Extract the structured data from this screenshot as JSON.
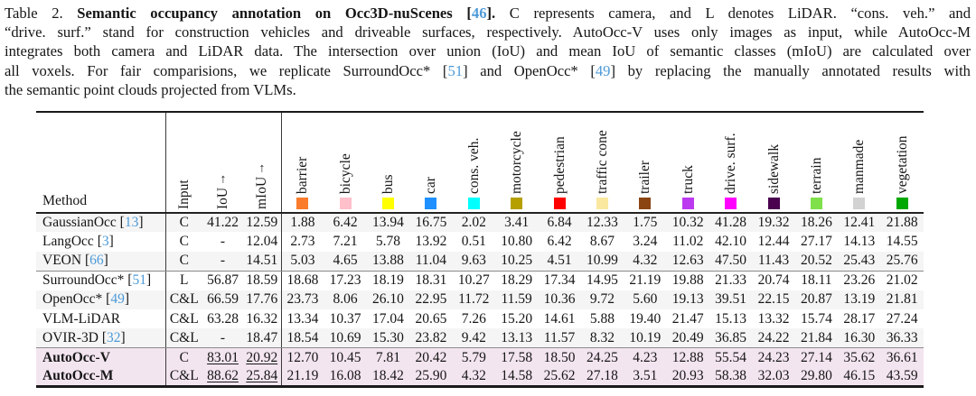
{
  "caption": {
    "lines": [
      {
        "segments": [
          {
            "t": "Table 2. ",
            "s": "n"
          },
          {
            "t": "Semantic occupancy annotation on Occ3D-nuScenes [",
            "s": "b"
          },
          {
            "t": "46",
            "s": "bc"
          },
          {
            "t": "].",
            "s": "b"
          },
          {
            "t": " C represents camera, and L denotes LiDAR. “cons. veh.” and",
            "s": "n"
          }
        ]
      },
      {
        "segments": [
          {
            "t": "“drive. surf.” stand for construction vehicles and driveable surfaces, respectively. AutoOcc-V uses only images as input, while AutoOcc-M",
            "s": "n"
          }
        ]
      },
      {
        "segments": [
          {
            "t": "integrates both camera and LiDAR data. The intersection over union (IoU) and mean IoU of semantic classes (mIoU) are calculated over",
            "s": "n"
          }
        ]
      },
      {
        "segments": [
          {
            "t": "all voxels. For fair comparisions, we replicate SurroundOcc* [",
            "s": "n"
          },
          {
            "t": "51",
            "s": "c"
          },
          {
            "t": "] and OpenOcc* [",
            "s": "n"
          },
          {
            "t": "49",
            "s": "c"
          },
          {
            "t": "] by replacing the manually annotated results with",
            "s": "n"
          }
        ]
      },
      {
        "segments": [
          {
            "t": "the semantic point clouds projected from VLMs.",
            "s": "n"
          }
        ]
      }
    ]
  },
  "table": {
    "method_header": "Method",
    "meta": [
      {
        "label": "Input",
        "arrow": ""
      },
      {
        "label": "IoU",
        "arrow": "↑"
      },
      {
        "label": "mIoU",
        "arrow": "↑"
      }
    ],
    "classes": [
      {
        "label": "barrier",
        "color": "#f97b2b"
      },
      {
        "label": "bicycle",
        "color": "#ffc0cb"
      },
      {
        "label": "bus",
        "color": "#ffff00"
      },
      {
        "label": "car",
        "color": "#1e90ff"
      },
      {
        "label": "cons. veh.",
        "color": "#00ffff"
      },
      {
        "label": "motorcycle",
        "color": "#b5a000"
      },
      {
        "label": "pedestrian",
        "color": "#ff0000"
      },
      {
        "label": "traffic cone",
        "color": "#fbe8a0"
      },
      {
        "label": "trailer",
        "color": "#8b4513"
      },
      {
        "label": "truck",
        "color": "#bb3af0"
      },
      {
        "label": "drive. surf.",
        "color": "#ff00ff"
      },
      {
        "label": "sidewalk",
        "color": "#4a004f"
      },
      {
        "label": "terrain",
        "color": "#7fe04a"
      },
      {
        "label": "manmade",
        "color": "#d2d2d2"
      },
      {
        "label": "vegetation",
        "color": "#00a800"
      }
    ],
    "rows": [
      {
        "method": "GaussianOcc",
        "cite": "13",
        "bold": false,
        "highlight": false,
        "rule_after": false,
        "input": "C",
        "iou": "41.22",
        "miou": "12.59",
        "underline": false,
        "values": [
          "1.88",
          "6.42",
          "13.94",
          "16.75",
          "2.02",
          "3.41",
          "6.84",
          "12.33",
          "1.75",
          "10.32",
          "41.28",
          "19.32",
          "18.26",
          "12.41",
          "21.88"
        ]
      },
      {
        "method": "LangOcc",
        "cite": "3",
        "bold": false,
        "highlight": false,
        "rule_after": false,
        "input": "C",
        "iou": "-",
        "miou": "12.04",
        "underline": false,
        "values": [
          "2.73",
          "7.21",
          "5.78",
          "13.92",
          "0.51",
          "10.80",
          "6.42",
          "8.67",
          "3.24",
          "11.02",
          "42.10",
          "12.44",
          "27.17",
          "14.13",
          "14.55"
        ]
      },
      {
        "method": "VEON",
        "cite": "66",
        "bold": false,
        "highlight": false,
        "rule_after": true,
        "input": "C",
        "iou": "-",
        "miou": "14.51",
        "underline": false,
        "values": [
          "5.03",
          "4.65",
          "13.88",
          "11.04",
          "9.63",
          "10.25",
          "4.51",
          "10.99",
          "4.32",
          "12.63",
          "47.50",
          "11.43",
          "20.52",
          "25.43",
          "25.76"
        ]
      },
      {
        "method": "SurroundOcc*",
        "cite": "51",
        "bold": false,
        "highlight": false,
        "rule_after": false,
        "input": "L",
        "iou": "56.87",
        "miou": "18.59",
        "underline": false,
        "values": [
          "18.68",
          "17.23",
          "18.19",
          "18.31",
          "10.27",
          "18.29",
          "17.34",
          "14.95",
          "21.19",
          "19.88",
          "21.33",
          "20.74",
          "18.11",
          "23.26",
          "21.02"
        ]
      },
      {
        "method": "OpenOcc*",
        "cite": "49",
        "bold": false,
        "highlight": false,
        "rule_after": false,
        "input": "C&L",
        "iou": "66.59",
        "miou": "17.76",
        "underline": false,
        "values": [
          "23.73",
          "8.06",
          "26.10",
          "22.95",
          "11.72",
          "11.59",
          "10.36",
          "9.72",
          "5.60",
          "19.13",
          "39.51",
          "22.15",
          "20.87",
          "13.19",
          "21.81"
        ]
      },
      {
        "method": "VLM-LiDAR",
        "cite": null,
        "bold": false,
        "highlight": false,
        "rule_after": false,
        "input": "C&L",
        "iou": "63.28",
        "miou": "16.32",
        "underline": false,
        "values": [
          "13.34",
          "10.37",
          "17.04",
          "20.65",
          "7.26",
          "15.20",
          "14.61",
          "5.88",
          "19.40",
          "21.47",
          "15.13",
          "13.32",
          "15.74",
          "28.17",
          "27.24"
        ]
      },
      {
        "method": "OVIR-3D",
        "cite": "32",
        "bold": false,
        "highlight": false,
        "rule_after": true,
        "input": "C&L",
        "iou": "-",
        "miou": "18.47",
        "underline": false,
        "values": [
          "18.54",
          "10.69",
          "15.30",
          "23.82",
          "9.42",
          "13.13",
          "11.57",
          "8.32",
          "10.19",
          "20.49",
          "36.85",
          "24.22",
          "21.84",
          "16.30",
          "36.33"
        ]
      },
      {
        "method": "AutoOcc-V",
        "cite": null,
        "bold": true,
        "highlight": true,
        "rule_after": false,
        "input": "C",
        "iou": "83.01",
        "miou": "20.92",
        "underline": true,
        "values": [
          "12.70",
          "10.45",
          "7.81",
          "20.42",
          "5.79",
          "17.58",
          "18.50",
          "24.25",
          "4.23",
          "12.88",
          "55.54",
          "24.23",
          "27.14",
          "35.62",
          "36.61"
        ]
      },
      {
        "method": "AutoOcc-M",
        "cite": null,
        "bold": true,
        "highlight": true,
        "rule_after": false,
        "input": "C&L",
        "iou": "88.62",
        "miou": "25.84",
        "underline": true,
        "values": [
          "21.19",
          "16.08",
          "18.42",
          "25.90",
          "4.32",
          "14.58",
          "25.62",
          "27.18",
          "3.51",
          "20.93",
          "58.38",
          "32.03",
          "29.80",
          "46.15",
          "43.59"
        ]
      }
    ],
    "layout": {
      "col_widths": {
        "method": 143,
        "input": 41,
        "iou": 45,
        "miou": 42,
        "class": 47.4
      }
    }
  }
}
